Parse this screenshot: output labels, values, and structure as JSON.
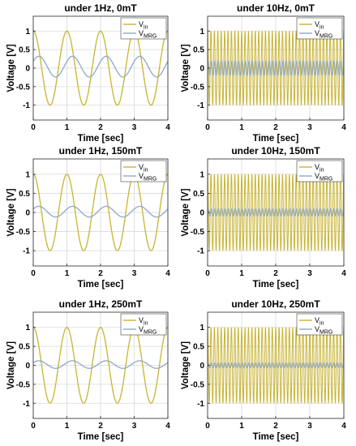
{
  "chart_data": [
    {
      "type": "line",
      "title": "under 1Hz, 0mT",
      "xlabel": "Time [sec]",
      "ylabel": "Voltage [V]",
      "xlim": [
        0,
        4
      ],
      "ylim": [
        -1.4,
        1.4
      ],
      "xticks": [
        "0",
        "1",
        "2",
        "3",
        "4"
      ],
      "yticks": [
        "1",
        "0.5",
        "0",
        "-0.5",
        "-1"
      ],
      "grid": true,
      "legend_position": "top-right",
      "series": [
        {
          "name": "Vin",
          "label_main": "V",
          "label_sub": "in",
          "color": "#c8b432",
          "frequency_hz": 1,
          "amplitude_v": 1.0,
          "phase_deg": 90,
          "offset_v": 0
        },
        {
          "name": "VMRG",
          "label_main": "V",
          "label_sub": "MRG",
          "color": "#8fa8c8",
          "frequency_hz": 1,
          "amplitude_v": 0.28,
          "phase_deg": 30,
          "offset_v": 0.04
        }
      ]
    },
    {
      "type": "line",
      "title": "under 10Hz, 0mT",
      "xlabel": "Time [sec]",
      "ylabel": "Voltage [V]",
      "xlim": [
        0,
        4
      ],
      "ylim": [
        -1.4,
        1.4
      ],
      "xticks": [
        "0",
        "1",
        "2",
        "3",
        "4"
      ],
      "yticks": [
        "1",
        "0.5",
        "0",
        "-0.5",
        "-1"
      ],
      "grid": true,
      "legend_position": "top-right",
      "series": [
        {
          "name": "Vin",
          "label_main": "V",
          "label_sub": "in",
          "color": "#c8b432",
          "frequency_hz": 10,
          "amplitude_v": 1.0,
          "phase_deg": 90,
          "offset_v": 0
        },
        {
          "name": "VMRG",
          "label_main": "V",
          "label_sub": "MRG",
          "color": "#8fa8c8",
          "frequency_hz": 10,
          "amplitude_v": 0.2,
          "phase_deg": 30,
          "offset_v": 0
        }
      ]
    },
    {
      "type": "line",
      "title": "under 1Hz, 150mT",
      "xlabel": "Time [sec]",
      "ylabel": "Voltage [V]",
      "xlim": [
        0,
        4
      ],
      "ylim": [
        -1.4,
        1.4
      ],
      "xticks": [
        "0",
        "1",
        "2",
        "3",
        "4"
      ],
      "yticks": [
        "1",
        "0.5",
        "0",
        "-0.5",
        "-1"
      ],
      "grid": true,
      "legend_position": "top-right",
      "series": [
        {
          "name": "Vin",
          "label_main": "V",
          "label_sub": "in",
          "color": "#c8b432",
          "frequency_hz": 1,
          "amplitude_v": 1.0,
          "phase_deg": 90,
          "offset_v": 0
        },
        {
          "name": "VMRG",
          "label_main": "V",
          "label_sub": "MRG",
          "color": "#8fa8c8",
          "frequency_hz": 1,
          "amplitude_v": 0.14,
          "phase_deg": 30,
          "offset_v": 0.02
        }
      ]
    },
    {
      "type": "line",
      "title": "under 10Hz, 150mT",
      "xlabel": "Time [sec]",
      "ylabel": "Voltage [V]",
      "xlim": [
        0,
        4
      ],
      "ylim": [
        -1.4,
        1.4
      ],
      "xticks": [
        "0",
        "1",
        "2",
        "3",
        "4"
      ],
      "yticks": [
        "1",
        "0.5",
        "0",
        "-0.5",
        "-1"
      ],
      "grid": true,
      "legend_position": "top-right",
      "series": [
        {
          "name": "Vin",
          "label_main": "V",
          "label_sub": "in",
          "color": "#c8b432",
          "frequency_hz": 10,
          "amplitude_v": 1.0,
          "phase_deg": 90,
          "offset_v": 0
        },
        {
          "name": "VMRG",
          "label_main": "V",
          "label_sub": "MRG",
          "color": "#8fa8c8",
          "frequency_hz": 10,
          "amplitude_v": 0.1,
          "phase_deg": 30,
          "offset_v": 0
        }
      ]
    },
    {
      "type": "line",
      "title": "under 1Hz, 250mT",
      "xlabel": "Time [sec]",
      "ylabel": "Voltage [V]",
      "xlim": [
        0,
        4
      ],
      "ylim": [
        -1.4,
        1.4
      ],
      "xticks": [
        "0",
        "1",
        "2",
        "3",
        "4"
      ],
      "yticks": [
        "1",
        "0.5",
        "0",
        "-0.5",
        "-1"
      ],
      "grid": true,
      "legend_position": "top-right",
      "series": [
        {
          "name": "Vin",
          "label_main": "V",
          "label_sub": "in",
          "color": "#c8b432",
          "frequency_hz": 1,
          "amplitude_v": 1.0,
          "phase_deg": 90,
          "offset_v": 0
        },
        {
          "name": "VMRG",
          "label_main": "V",
          "label_sub": "MRG",
          "color": "#8fa8c8",
          "frequency_hz": 1,
          "amplitude_v": 0.1,
          "phase_deg": 30,
          "offset_v": 0.02
        }
      ]
    },
    {
      "type": "line",
      "title": "under 10Hz, 250mT",
      "xlabel": "Time [sec]",
      "ylabel": "Voltage [V]",
      "xlim": [
        0,
        4
      ],
      "ylim": [
        -1.4,
        1.4
      ],
      "xticks": [
        "0",
        "1",
        "2",
        "3",
        "4"
      ],
      "yticks": [
        "1",
        "0.5",
        "0",
        "-0.5",
        "-1"
      ],
      "grid": true,
      "legend_position": "top-right",
      "series": [
        {
          "name": "Vin",
          "label_main": "V",
          "label_sub": "in",
          "color": "#c8b432",
          "frequency_hz": 10,
          "amplitude_v": 1.0,
          "phase_deg": 90,
          "offset_v": 0
        },
        {
          "name": "VMRG",
          "label_main": "V",
          "label_sub": "MRG",
          "color": "#8fa8c8",
          "frequency_hz": 10,
          "amplitude_v": 0.07,
          "phase_deg": 30,
          "offset_v": 0
        }
      ]
    }
  ],
  "style": {
    "grid_color": "#d9d9d9",
    "axis_color": "#262626",
    "background": "#ffffff"
  }
}
